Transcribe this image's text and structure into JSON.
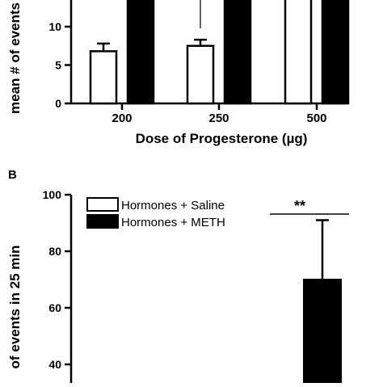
{
  "chart_data": [
    {
      "panel": "",
      "type": "bar",
      "categories": [
        "200",
        "250",
        "500"
      ],
      "xlabel": "Dose of Progesterone (µg)",
      "ylabel": "mean # of events",
      "yticks": [
        "0",
        "5",
        "10"
      ],
      "ylim": [
        0,
        15
      ],
      "series": [
        {
          "values": [
            6.8,
            7.5,
            14.5
          ],
          "errors": [
            1.0,
            0.8,
            0
          ],
          "fill": "#ffffff"
        },
        {
          "values": [
            14.5,
            14.5,
            14.5
          ],
          "errors": [
            0,
            0,
            0
          ],
          "fill": "#000000"
        }
      ],
      "annotation_error_250": 14.0
    },
    {
      "panel": "B",
      "type": "bar",
      "ylabel": "of events in 25 min",
      "yticks": [
        "40",
        "60",
        "80",
        "100"
      ],
      "ylim": [
        30,
        100
      ],
      "legend": [
        "Hormones + Saline",
        "Hormones + METH"
      ],
      "legend_placement": "top-left",
      "series": [
        {
          "name": "Hormones + Saline",
          "values": [],
          "fill": "#ffffff"
        },
        {
          "name": "Hormones + METH",
          "values": [
            70
          ],
          "errors": [
            21
          ],
          "fill": "#000000"
        }
      ],
      "significance": "**"
    }
  ]
}
